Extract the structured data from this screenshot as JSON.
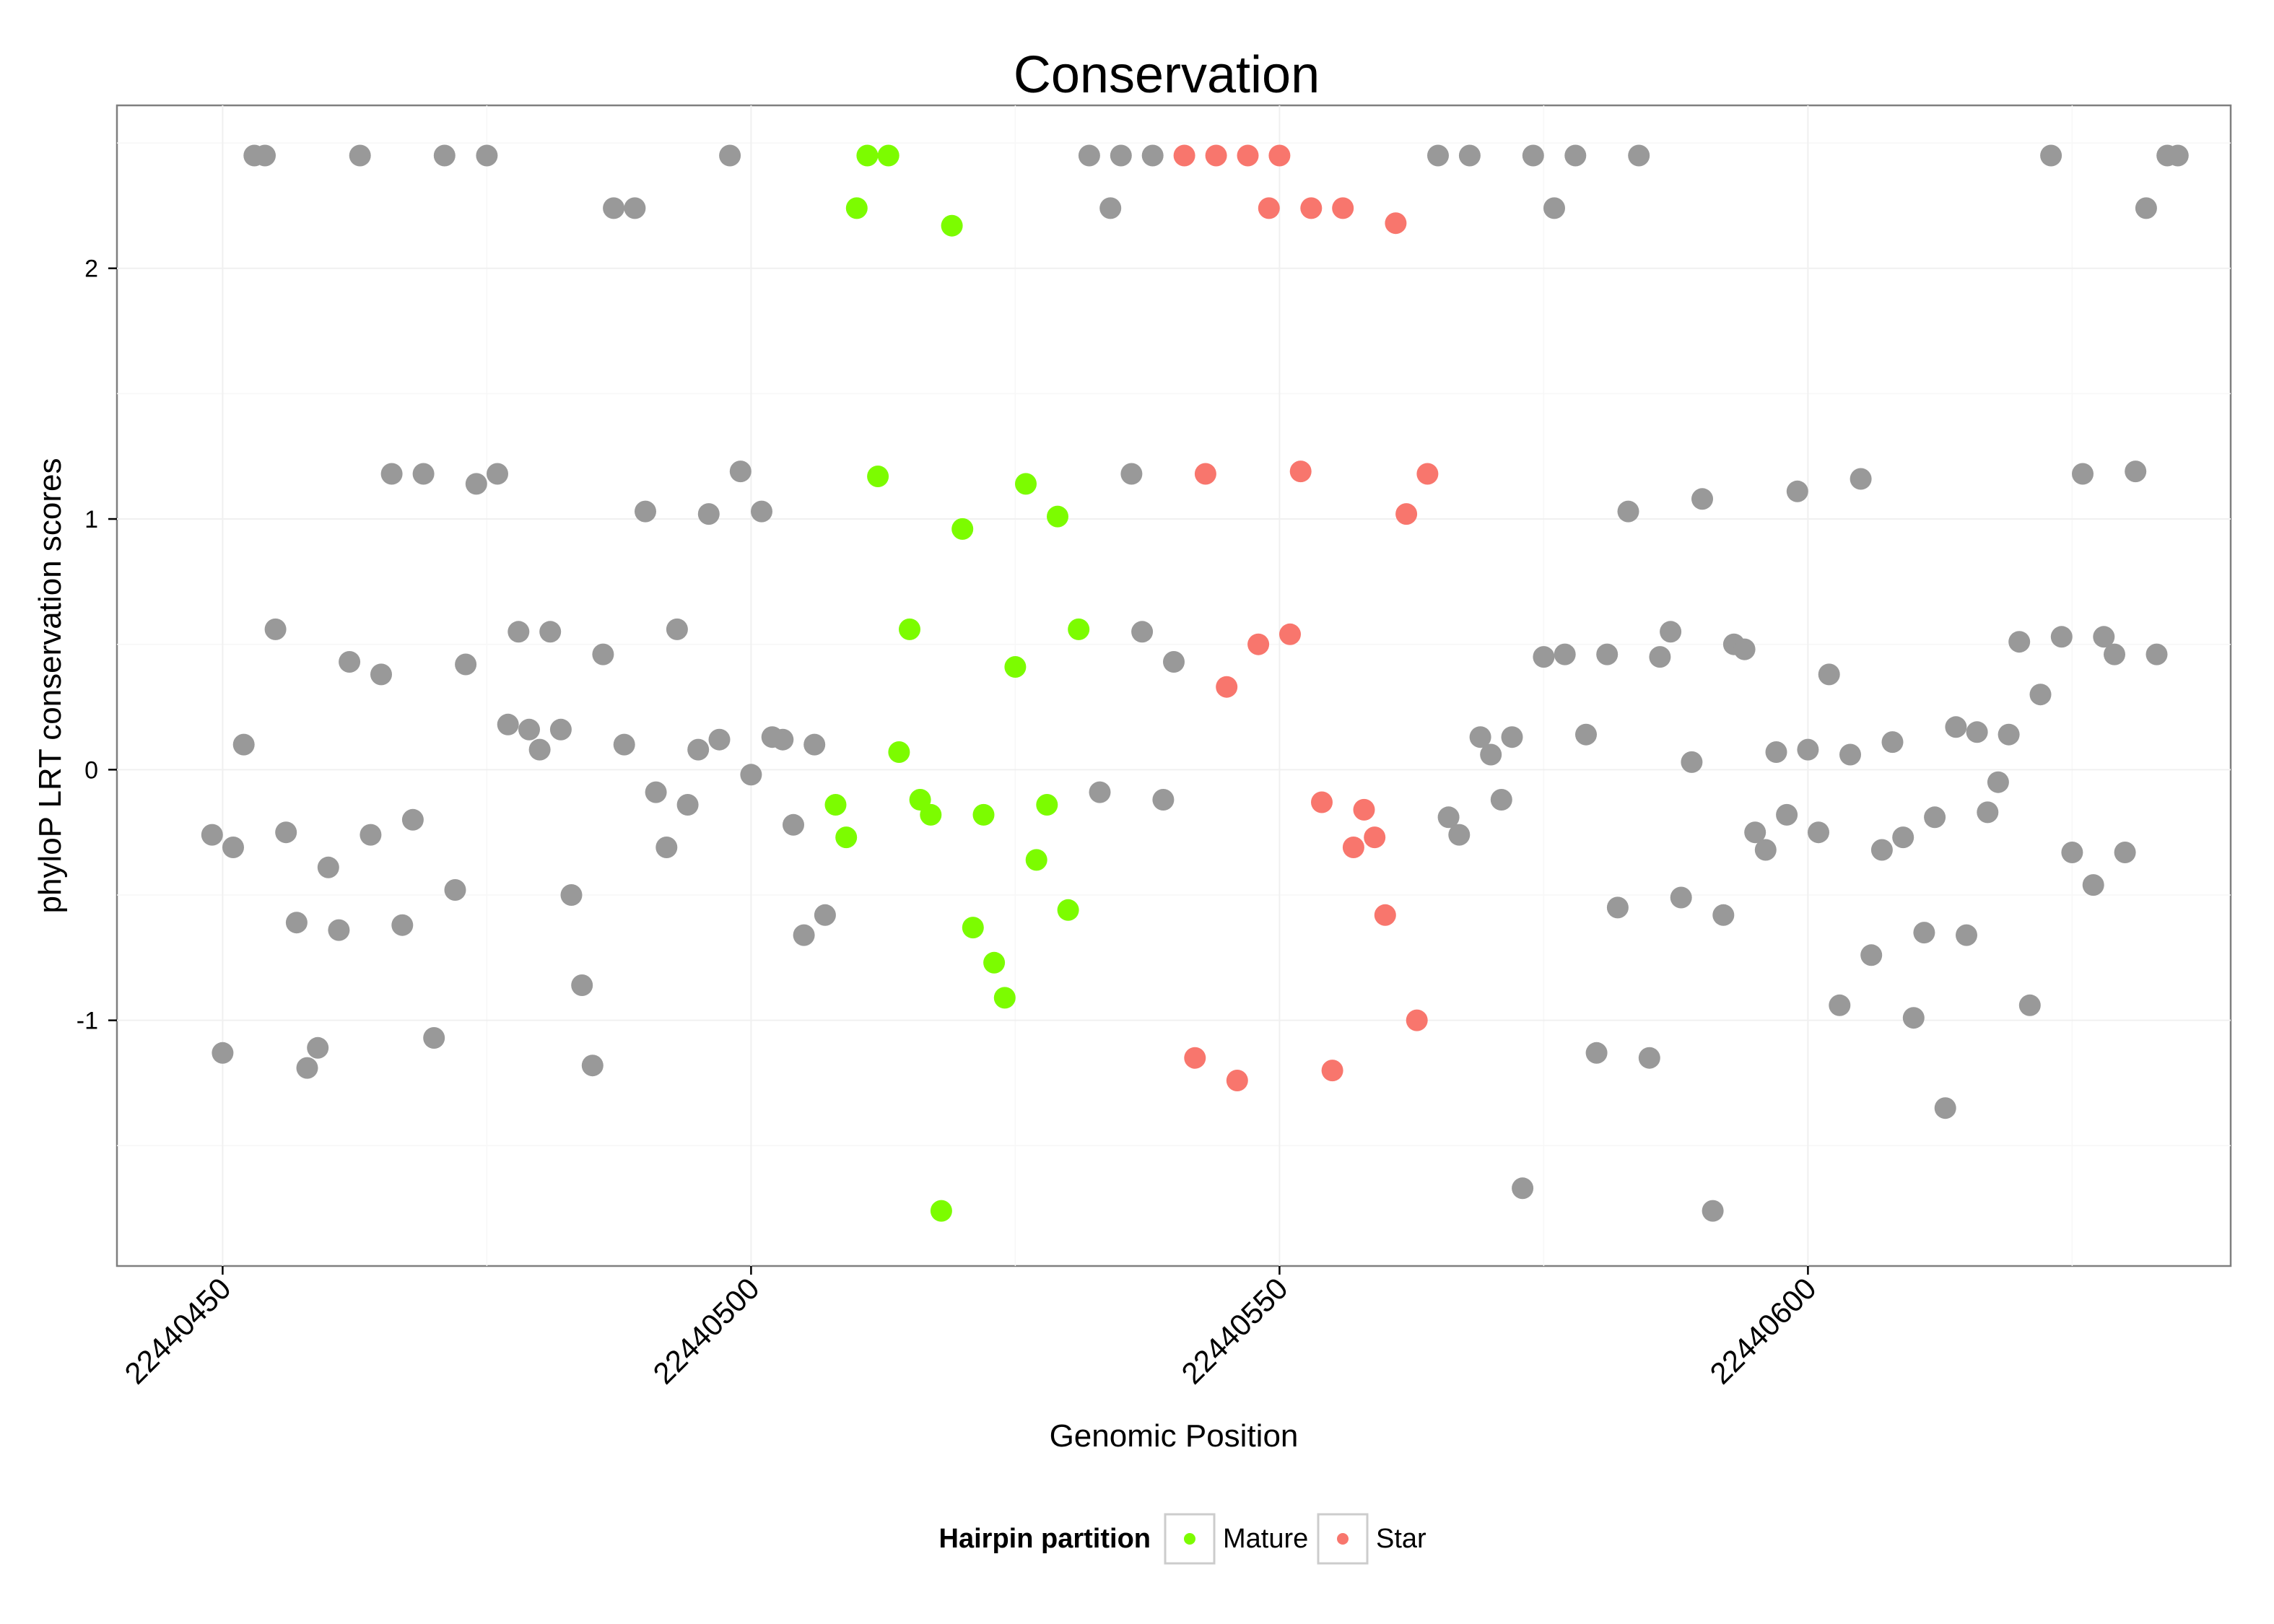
{
  "chart_data": {
    "type": "scatter",
    "title": "Conservation",
    "xlabel": "Genomic Position",
    "ylabel": "phyloP LRT conservation scores",
    "xlim": [
      22440440,
      22440640
    ],
    "ylim": [
      -1.98,
      2.65
    ],
    "x_ticks": [
      22440450,
      22440500,
      22440550,
      22440600
    ],
    "x_tick_labels": [
      "22440450",
      "22440500",
      "22440550",
      "22440600"
    ],
    "y_ticks": [
      -1,
      0,
      1,
      2
    ],
    "y_tick_labels": [
      "-1",
      "0",
      "1",
      "2"
    ],
    "grid": true,
    "legend": {
      "title": "Hairpin partition",
      "position": "bottom",
      "entries": [
        {
          "label": "Mature",
          "color": "#7CFC00"
        },
        {
          "label": "Star",
          "color": "#F8766D"
        }
      ]
    },
    "other_color": "#999999",
    "series": [
      {
        "group": "other",
        "color": "#999999",
        "points": [
          [
            22440449,
            -0.26
          ],
          [
            22440450,
            -1.13
          ],
          [
            22440451,
            -0.31
          ],
          [
            22440452,
            0.1
          ],
          [
            22440453,
            2.45
          ],
          [
            22440454,
            2.45
          ],
          [
            22440455,
            0.56
          ],
          [
            22440456,
            -0.25
          ],
          [
            22440457,
            -0.61
          ],
          [
            22440458,
            -1.19
          ],
          [
            22440459,
            -1.11
          ],
          [
            22440460,
            -0.39
          ],
          [
            22440461,
            -0.64
          ],
          [
            22440462,
            0.43
          ],
          [
            22440463,
            2.45
          ],
          [
            22440464,
            -0.26
          ],
          [
            22440465,
            0.38
          ],
          [
            22440466,
            1.18
          ],
          [
            22440467,
            -0.62
          ],
          [
            22440468,
            -0.2
          ],
          [
            22440469,
            1.18
          ],
          [
            22440470,
            -1.07
          ],
          [
            22440471,
            2.45
          ],
          [
            22440472,
            -0.48
          ],
          [
            22440473,
            0.42
          ],
          [
            22440474,
            1.14
          ],
          [
            22440475,
            2.45
          ],
          [
            22440476,
            1.18
          ],
          [
            22440477,
            0.18
          ],
          [
            22440478,
            0.55
          ],
          [
            22440479,
            0.16
          ],
          [
            22440480,
            0.08
          ],
          [
            22440481,
            0.55
          ],
          [
            22440482,
            0.16
          ],
          [
            22440483,
            -0.5
          ],
          [
            22440484,
            -0.86
          ],
          [
            22440485,
            -1.18
          ],
          [
            22440486,
            0.46
          ],
          [
            22440487,
            2.24
          ],
          [
            22440488,
            0.1
          ],
          [
            22440489,
            2.24
          ],
          [
            22440490,
            1.03
          ],
          [
            22440491,
            -0.09
          ],
          [
            22440492,
            -0.31
          ],
          [
            22440493,
            0.56
          ],
          [
            22440494,
            -0.14
          ],
          [
            22440495,
            0.08
          ],
          [
            22440496,
            1.02
          ],
          [
            22440497,
            0.12
          ],
          [
            22440498,
            2.45
          ],
          [
            22440499,
            1.19
          ],
          [
            22440500,
            -0.02
          ],
          [
            22440501,
            1.03
          ],
          [
            22440502,
            0.13
          ],
          [
            22440503,
            0.12
          ],
          [
            22440504,
            -0.22
          ],
          [
            22440505,
            -0.66
          ],
          [
            22440506,
            0.1
          ],
          [
            22440507,
            -0.58
          ],
          [
            22440532,
            2.45
          ],
          [
            22440533,
            -0.09
          ],
          [
            22440534,
            2.24
          ],
          [
            22440535,
            2.45
          ],
          [
            22440536,
            1.18
          ],
          [
            22440537,
            0.55
          ],
          [
            22440538,
            2.45
          ],
          [
            22440539,
            -0.12
          ],
          [
            22440540,
            0.43
          ],
          [
            22440565,
            2.45
          ],
          [
            22440566,
            -0.19
          ],
          [
            22440567,
            -0.26
          ],
          [
            22440568,
            2.45
          ],
          [
            22440569,
            0.13
          ],
          [
            22440570,
            0.06
          ],
          [
            22440571,
            -0.12
          ],
          [
            22440572,
            0.13
          ],
          [
            22440573,
            -1.67
          ],
          [
            22440574,
            2.45
          ],
          [
            22440575,
            0.45
          ],
          [
            22440576,
            2.24
          ],
          [
            22440577,
            0.46
          ],
          [
            22440578,
            2.45
          ],
          [
            22440579,
            0.14
          ],
          [
            22440580,
            -1.13
          ],
          [
            22440581,
            0.46
          ],
          [
            22440582,
            -0.55
          ],
          [
            22440583,
            1.03
          ],
          [
            22440584,
            2.45
          ],
          [
            22440585,
            -1.15
          ],
          [
            22440586,
            0.45
          ],
          [
            22440587,
            0.55
          ],
          [
            22440588,
            -0.51
          ],
          [
            22440589,
            0.03
          ],
          [
            22440590,
            1.08
          ],
          [
            22440591,
            -1.76
          ],
          [
            22440592,
            -0.58
          ],
          [
            22440593,
            0.5
          ],
          [
            22440594,
            0.48
          ],
          [
            22440595,
            -0.25
          ],
          [
            22440596,
            -0.32
          ],
          [
            22440597,
            0.07
          ],
          [
            22440598,
            -0.18
          ],
          [
            22440599,
            1.11
          ],
          [
            22440600,
            0.08
          ],
          [
            22440601,
            -0.25
          ],
          [
            22440602,
            0.38
          ],
          [
            22440603,
            -0.94
          ],
          [
            22440604,
            0.06
          ],
          [
            22440605,
            1.16
          ],
          [
            22440606,
            -0.74
          ],
          [
            22440607,
            -0.32
          ],
          [
            22440608,
            0.11
          ],
          [
            22440609,
            -0.27
          ],
          [
            22440610,
            -0.99
          ],
          [
            22440611,
            -0.65
          ],
          [
            22440612,
            -0.19
          ],
          [
            22440613,
            -1.35
          ],
          [
            22440614,
            0.17
          ],
          [
            22440615,
            -0.66
          ],
          [
            22440616,
            0.15
          ],
          [
            22440617,
            -0.17
          ],
          [
            22440618,
            -0.05
          ],
          [
            22440619,
            0.14
          ],
          [
            22440620,
            0.51
          ],
          [
            22440621,
            -0.94
          ],
          [
            22440622,
            0.3
          ],
          [
            22440623,
            2.45
          ],
          [
            22440624,
            0.53
          ],
          [
            22440625,
            -0.33
          ],
          [
            22440626,
            1.18
          ],
          [
            22440627,
            -0.46
          ],
          [
            22440628,
            0.53
          ],
          [
            22440629,
            0.46
          ],
          [
            22440630,
            -0.33
          ],
          [
            22440631,
            1.19
          ],
          [
            22440632,
            2.24
          ],
          [
            22440633,
            0.46
          ],
          [
            22440634,
            2.45
          ],
          [
            22440635,
            2.45
          ]
        ]
      },
      {
        "group": "Mature",
        "color": "#7CFC00",
        "points": [
          [
            22440508,
            -0.14
          ],
          [
            22440509,
            -0.27
          ],
          [
            22440510,
            2.24
          ],
          [
            22440511,
            2.45
          ],
          [
            22440512,
            1.17
          ],
          [
            22440513,
            2.45
          ],
          [
            22440514,
            0.07
          ],
          [
            22440515,
            0.56
          ],
          [
            22440516,
            -0.12
          ],
          [
            22440517,
            -0.18
          ],
          [
            22440518,
            -1.76
          ],
          [
            22440519,
            2.17
          ],
          [
            22440520,
            0.96
          ],
          [
            22440521,
            -0.63
          ],
          [
            22440522,
            -0.18
          ],
          [
            22440523,
            -0.77
          ],
          [
            22440524,
            -0.91
          ],
          [
            22440525,
            0.41
          ],
          [
            22440526,
            1.14
          ],
          [
            22440527,
            -0.36
          ],
          [
            22440528,
            -0.14
          ],
          [
            22440529,
            1.01
          ],
          [
            22440530,
            -0.56
          ],
          [
            22440531,
            0.56
          ]
        ]
      },
      {
        "group": "Star",
        "color": "#F8766D",
        "points": [
          [
            22440541,
            2.45
          ],
          [
            22440542,
            -1.15
          ],
          [
            22440543,
            1.18
          ],
          [
            22440544,
            2.45
          ],
          [
            22440545,
            0.33
          ],
          [
            22440546,
            -1.24
          ],
          [
            22440547,
            2.45
          ],
          [
            22440548,
            0.5
          ],
          [
            22440549,
            2.24
          ],
          [
            22440550,
            2.45
          ],
          [
            22440551,
            0.54
          ],
          [
            22440552,
            1.19
          ],
          [
            22440553,
            2.24
          ],
          [
            22440554,
            -0.13
          ],
          [
            22440555,
            -1.2
          ],
          [
            22440556,
            2.24
          ],
          [
            22440557,
            -0.31
          ],
          [
            22440558,
            -0.16
          ],
          [
            22440559,
            -0.27
          ],
          [
            22440560,
            -0.58
          ],
          [
            22440561,
            2.18
          ],
          [
            22440562,
            1.02
          ],
          [
            22440563,
            -1.0
          ],
          [
            22440564,
            1.18
          ]
        ]
      }
    ]
  }
}
